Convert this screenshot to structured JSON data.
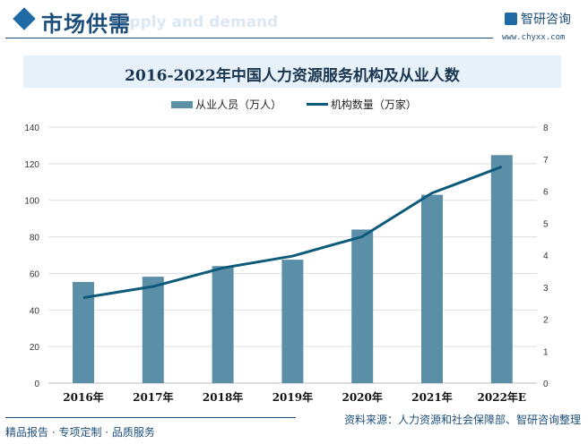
{
  "header": {
    "title": "市场供需",
    "subtitle": "Supply and demand",
    "brand": "智研咨询",
    "url": "www.chyxx.com"
  },
  "footer": {
    "source": "资料来源：人力资源和社会保障部、智研咨询整理",
    "slogan": "精品报告 · 专项定制 · 品质服务"
  },
  "colors": {
    "bar": "#5b8fa8",
    "line": "#0e5a7a",
    "accent": "#1b4e7a"
  },
  "chart_data": {
    "type": "bar+line",
    "title": "2016-2022年中国人力资源服务机构及从业人数",
    "categories": [
      "2016年",
      "2017年",
      "2018年",
      "2019年",
      "2020年",
      "2021年",
      "2022年E"
    ],
    "series": [
      {
        "name": "从业人员（万人）",
        "type": "bar",
        "axis": "left",
        "values": [
          55.3,
          58.2,
          64,
          67.5,
          84,
          103,
          124.7
        ]
      },
      {
        "name": "机构数量（万家）",
        "type": "line",
        "axis": "right",
        "values": [
          2.67,
          3.02,
          3.6,
          3.97,
          4.58,
          5.94,
          6.76
        ]
      }
    ],
    "y_left": {
      "range": [
        0,
        140
      ],
      "ticks": [
        "0",
        "20",
        "40",
        "60",
        "80",
        "100",
        "120",
        "140"
      ]
    },
    "y_right": {
      "range": [
        0,
        8
      ],
      "ticks": [
        "0",
        "1",
        "2",
        "3",
        "4",
        "5",
        "6",
        "7",
        "8"
      ]
    },
    "grid": true,
    "legend": "top"
  }
}
